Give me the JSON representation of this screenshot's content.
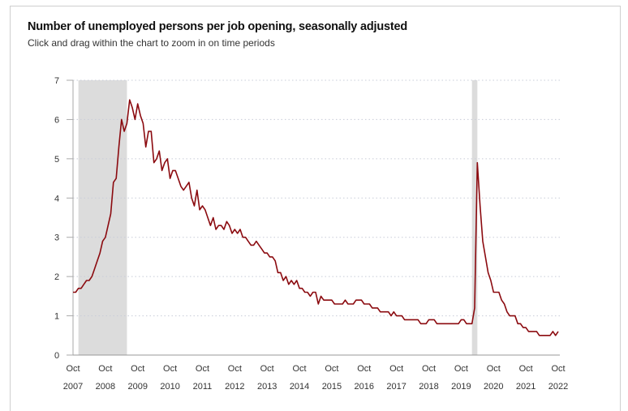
{
  "header": {
    "title": "Number of unemployed persons per job opening, seasonally adjusted",
    "subtitle": "Click and drag within the chart to zoom in on time periods"
  },
  "chart_data": {
    "type": "line",
    "title": "Number of unemployed persons per job opening, seasonally adjusted",
    "xlabel": "",
    "ylabel": "",
    "start": "Oct 2007",
    "end": "Oct 2022",
    "frequency": "monthly",
    "ylim": [
      0,
      7
    ],
    "y_ticks": [
      "0",
      "1",
      "2",
      "3",
      "4",
      "5",
      "6",
      "7"
    ],
    "x_ticks": [
      {
        "month": "Oct",
        "year": "2007",
        "index": 0
      },
      {
        "month": "Oct",
        "year": "2008",
        "index": 12
      },
      {
        "month": "Oct",
        "year": "2009",
        "index": 24
      },
      {
        "month": "Oct",
        "year": "2010",
        "index": 36
      },
      {
        "month": "Oct",
        "year": "2011",
        "index": 48
      },
      {
        "month": "Oct",
        "year": "2012",
        "index": 60
      },
      {
        "month": "Oct",
        "year": "2013",
        "index": 72
      },
      {
        "month": "Oct",
        "year": "2014",
        "index": 84
      },
      {
        "month": "Oct",
        "year": "2015",
        "index": 96
      },
      {
        "month": "Oct",
        "year": "2016",
        "index": 108
      },
      {
        "month": "Oct",
        "year": "2017",
        "index": 120
      },
      {
        "month": "Oct",
        "year": "2018",
        "index": 132
      },
      {
        "month": "Oct",
        "year": "2019",
        "index": 144
      },
      {
        "month": "Oct",
        "year": "2020",
        "index": 156
      },
      {
        "month": "Oct",
        "year": "2021",
        "index": 168
      },
      {
        "month": "Oct",
        "year": "2022",
        "index": 180
      }
    ],
    "recessions": [
      {
        "start_index": 2,
        "end_index": 20
      },
      {
        "start_index": 148,
        "end_index": 150
      }
    ],
    "grid": true,
    "series": [
      {
        "name": "Unemployed persons per job opening",
        "color": "#8b0a0f",
        "values": [
          1.6,
          1.6,
          1.7,
          1.7,
          1.8,
          1.9,
          1.9,
          2.0,
          2.2,
          2.4,
          2.6,
          2.9,
          3.0,
          3.3,
          3.6,
          4.4,
          4.5,
          5.3,
          6.0,
          5.7,
          5.9,
          6.5,
          6.3,
          6.0,
          6.4,
          6.1,
          5.9,
          5.3,
          5.7,
          5.7,
          4.9,
          5.0,
          5.2,
          4.7,
          4.9,
          5.0,
          4.5,
          4.7,
          4.7,
          4.5,
          4.3,
          4.2,
          4.3,
          4.4,
          4.0,
          3.8,
          4.2,
          3.7,
          3.8,
          3.7,
          3.5,
          3.3,
          3.5,
          3.2,
          3.3,
          3.3,
          3.2,
          3.4,
          3.3,
          3.1,
          3.2,
          3.1,
          3.2,
          3.0,
          3.0,
          2.9,
          2.8,
          2.8,
          2.9,
          2.8,
          2.7,
          2.6,
          2.6,
          2.5,
          2.5,
          2.4,
          2.1,
          2.1,
          1.9,
          2.0,
          1.8,
          1.9,
          1.8,
          1.9,
          1.7,
          1.7,
          1.6,
          1.6,
          1.5,
          1.6,
          1.6,
          1.3,
          1.5,
          1.4,
          1.4,
          1.4,
          1.4,
          1.3,
          1.3,
          1.3,
          1.3,
          1.4,
          1.3,
          1.3,
          1.3,
          1.4,
          1.4,
          1.4,
          1.3,
          1.3,
          1.3,
          1.2,
          1.2,
          1.2,
          1.1,
          1.1,
          1.1,
          1.1,
          1.0,
          1.1,
          1.0,
          1.0,
          1.0,
          0.9,
          0.9,
          0.9,
          0.9,
          0.9,
          0.9,
          0.8,
          0.8,
          0.8,
          0.9,
          0.9,
          0.9,
          0.8,
          0.8,
          0.8,
          0.8,
          0.8,
          0.8,
          0.8,
          0.8,
          0.8,
          0.9,
          0.9,
          0.8,
          0.8,
          0.8,
          1.2,
          4.9,
          3.8,
          2.9,
          2.5,
          2.1,
          1.9,
          1.6,
          1.6,
          1.6,
          1.4,
          1.3,
          1.1,
          1.0,
          1.0,
          1.0,
          0.8,
          0.8,
          0.7,
          0.7,
          0.6,
          0.6,
          0.6,
          0.6,
          0.5,
          0.5,
          0.5,
          0.5,
          0.5,
          0.6,
          0.5,
          0.6
        ]
      }
    ],
    "recession_color": "#dcdcdc",
    "grid_color": "#c8ccd8"
  }
}
